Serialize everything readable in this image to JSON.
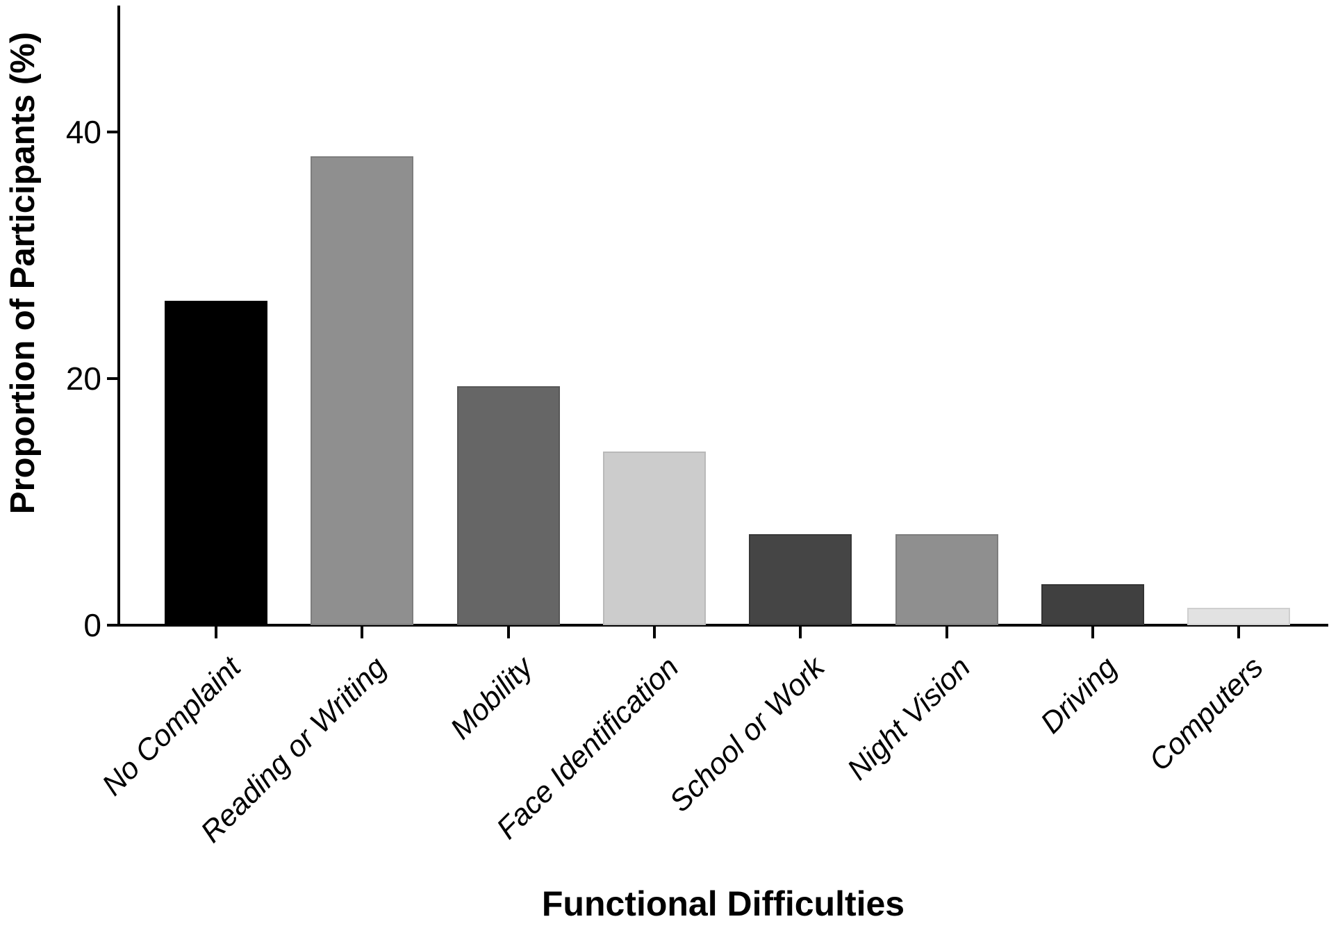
{
  "chart_data": {
    "type": "bar",
    "title": "",
    "xlabel": "Functional Difficulties",
    "ylabel": "Proportion of Participants (%)",
    "categories": [
      "No Complaint",
      "Reading or Writing",
      "Mobility",
      "Face Identification",
      "School or Work",
      "Night Vision",
      "Driving",
      "Computers"
    ],
    "values": [
      26.3,
      38.0,
      19.4,
      14.1,
      7.4,
      7.4,
      3.3,
      1.4
    ],
    "bar_colors": [
      "#000000",
      "#8f8f8f",
      "#666666",
      "#cccccc",
      "#454545",
      "#8f8f8f",
      "#404040",
      "#e2e2e2"
    ],
    "bar_border_colors": [
      "#000000",
      "#7d7d7d",
      "#585858",
      "#b9b9b9",
      "#373737",
      "#7d7d7d",
      "#333333",
      "#cfcfcf"
    ],
    "y_ticks": [
      0,
      20,
      40
    ],
    "ylim": [
      0,
      50
    ],
    "grid": false,
    "legend": "none",
    "axis_color": "#000000",
    "background_color": "#ffffff",
    "text_color": "#000000"
  }
}
